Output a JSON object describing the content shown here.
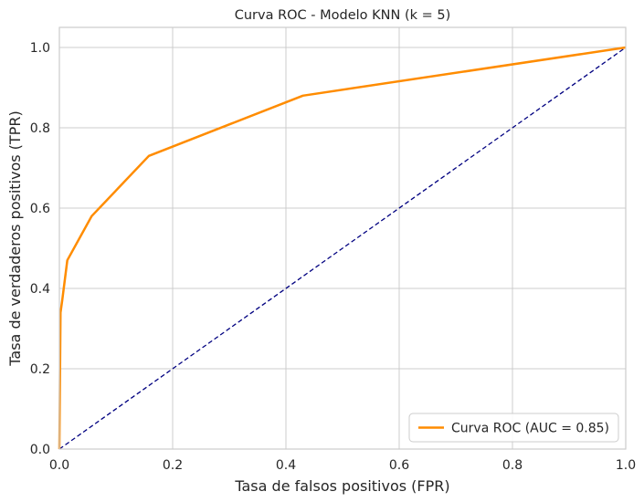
{
  "chart_data": {
    "type": "line",
    "title": "Curva ROC - Modelo KNN (k = 5)",
    "xlabel": "Tasa de falsos positivos (FPR)",
    "ylabel": "Tasa de verdaderos positivos (TPR)",
    "xlim": [
      0.0,
      1.0
    ],
    "ylim": [
      0.0,
      1.05
    ],
    "xticks": [
      "0.0",
      "0.2",
      "0.4",
      "0.6",
      "0.8",
      "1.0"
    ],
    "yticks": [
      "0.0",
      "0.2",
      "0.4",
      "0.6",
      "0.8",
      "1.0"
    ],
    "grid": true,
    "legend_position": "lower-right",
    "series": [
      {
        "name": "Curva ROC (AUC = 0.85)",
        "color": "#ff8c00",
        "style": "solid",
        "x": [
          0.0,
          0.002,
          0.005,
          0.014,
          0.057,
          0.158,
          0.43,
          1.0
        ],
        "y": [
          0.0,
          0.34,
          0.37,
          0.47,
          0.58,
          0.73,
          0.88,
          1.0
        ]
      },
      {
        "color": "#000080",
        "style": "dashed",
        "x": [
          0.0,
          1.0
        ],
        "y": [
          0.0,
          1.0
        ]
      }
    ]
  }
}
